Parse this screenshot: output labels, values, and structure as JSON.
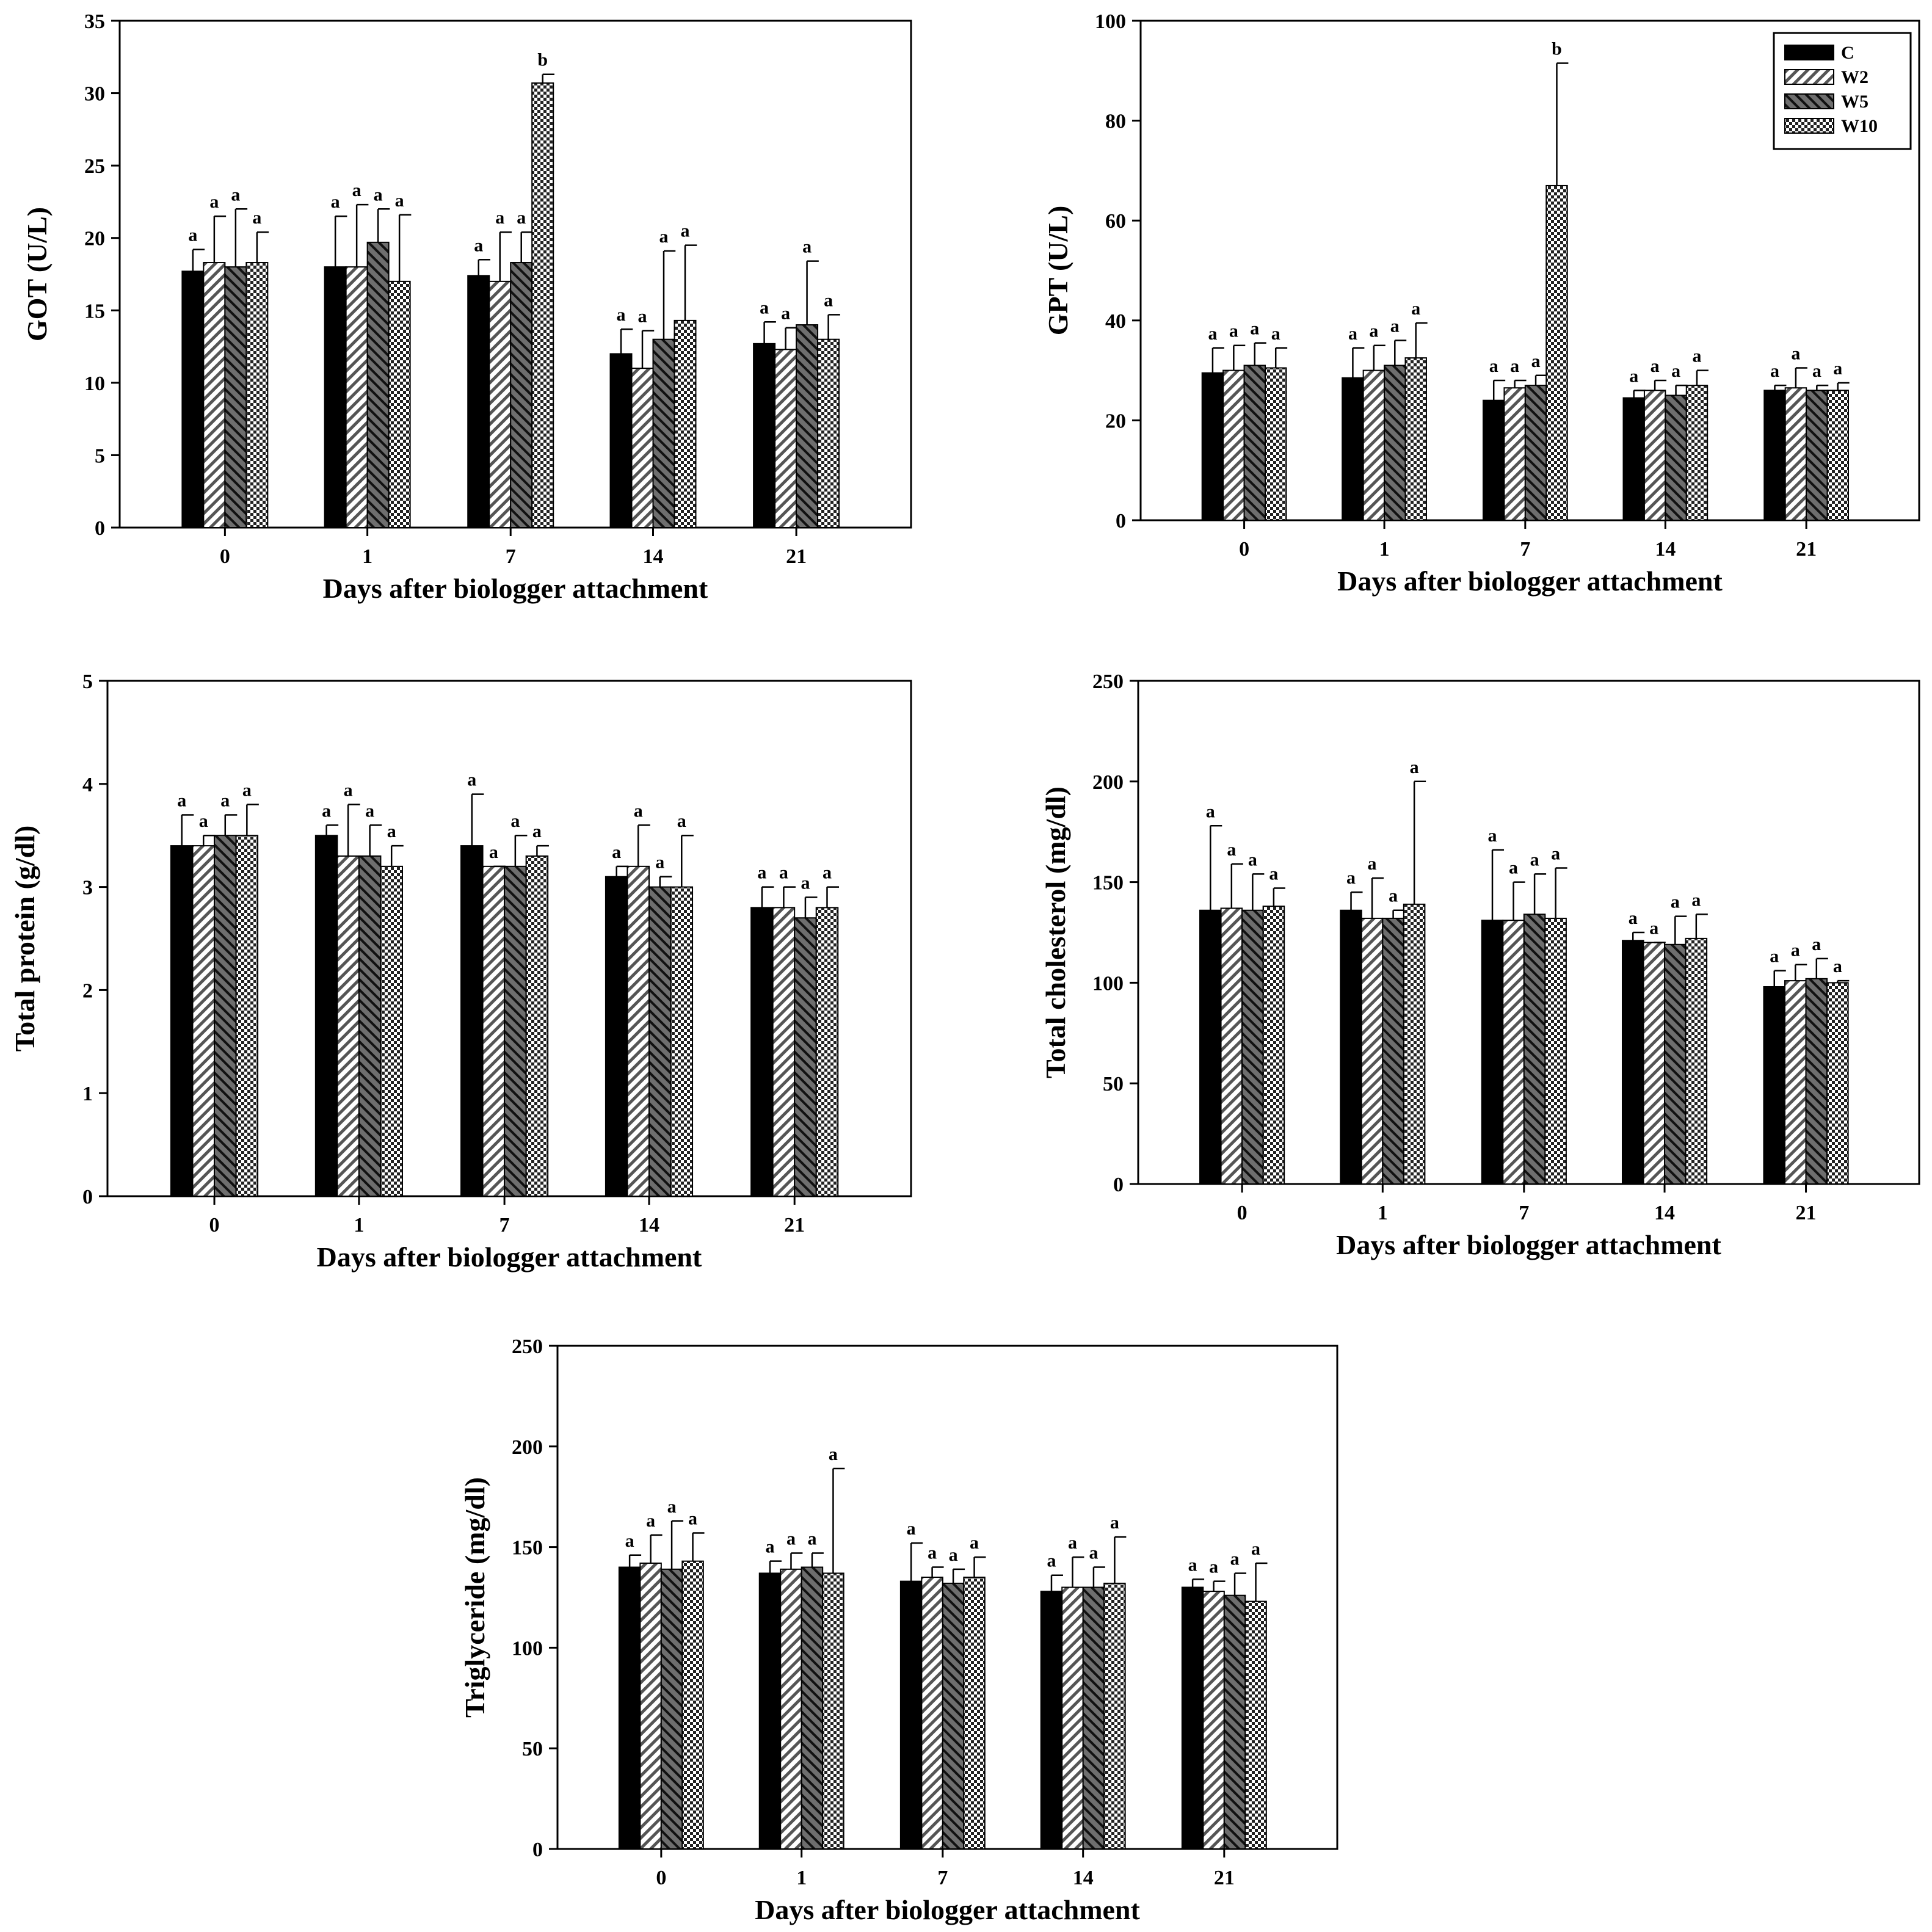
{
  "series_names": [
    "C",
    "W2",
    "W5",
    "W10"
  ],
  "categories": [
    "0",
    "1",
    "7",
    "14",
    "21"
  ],
  "chart_data": [
    {
      "type": "bar",
      "title": "",
      "xlabel": "Days after biologger attachment",
      "ylabel": "GOT (U/L)",
      "ylim": [
        0,
        35
      ],
      "yticks": [
        0,
        5,
        10,
        15,
        20,
        25,
        30,
        35
      ],
      "categories": [
        "0",
        "1",
        "7",
        "14",
        "21"
      ],
      "series": [
        {
          "name": "C",
          "values": [
            17.7,
            18.0,
            17.4,
            12.0,
            12.7
          ],
          "err_upper": [
            19.2,
            21.5,
            18.5,
            13.7,
            14.2
          ],
          "letters": [
            "a",
            "a",
            "a",
            "a",
            "a"
          ]
        },
        {
          "name": "W2",
          "values": [
            18.3,
            18.0,
            17.0,
            11.0,
            12.3
          ],
          "err_upper": [
            21.5,
            22.3,
            20.4,
            13.6,
            13.8
          ],
          "letters": [
            "a",
            "a",
            "a",
            "a",
            "a"
          ]
        },
        {
          "name": "W5",
          "values": [
            18.0,
            19.7,
            18.3,
            13.0,
            14.0
          ],
          "err_upper": [
            22.0,
            22.0,
            20.4,
            19.1,
            18.4
          ],
          "letters": [
            "a",
            "a",
            "a",
            "a",
            "a"
          ]
        },
        {
          "name": "W10",
          "values": [
            18.3,
            17.0,
            30.7,
            14.3,
            13.0
          ],
          "err_upper": [
            20.4,
            21.6,
            31.3,
            19.5,
            14.7
          ],
          "letters": [
            "a",
            "a",
            "b",
            "a",
            "a"
          ]
        }
      ],
      "legend": false
    },
    {
      "type": "bar",
      "title": "",
      "xlabel": "Days after biologger attachment",
      "ylabel": "GPT (U/L)",
      "ylim": [
        0,
        100
      ],
      "yticks": [
        0,
        20,
        40,
        60,
        80,
        100
      ],
      "categories": [
        "0",
        "1",
        "7",
        "14",
        "21"
      ],
      "series": [
        {
          "name": "C",
          "values": [
            29.5,
            28.5,
            24.0,
            24.5,
            26.0
          ],
          "err_upper": [
            34.5,
            34.5,
            28.0,
            26.0,
            27.0
          ],
          "letters": [
            "a",
            "a",
            "a",
            "a",
            "a"
          ]
        },
        {
          "name": "W2",
          "values": [
            30.0,
            30.0,
            26.5,
            26.0,
            26.5
          ],
          "err_upper": [
            35.0,
            35.0,
            28.0,
            28.0,
            30.5
          ],
          "letters": [
            "a",
            "a",
            "a",
            "a",
            "a"
          ]
        },
        {
          "name": "W5",
          "values": [
            31.0,
            31.0,
            27.0,
            25.0,
            26.0
          ],
          "err_upper": [
            35.5,
            36.0,
            29.0,
            27.0,
            27.0
          ],
          "letters": [
            "a",
            "a",
            "a",
            "a",
            "a"
          ]
        },
        {
          "name": "W10",
          "values": [
            30.5,
            32.5,
            67.0,
            27.0,
            26.0
          ],
          "err_upper": [
            34.5,
            39.5,
            91.5,
            30.0,
            27.5
          ],
          "letters": [
            "a",
            "a",
            "b",
            "a",
            "a"
          ]
        }
      ],
      "legend": true,
      "legend_position": "top-right"
    },
    {
      "type": "bar",
      "title": "",
      "xlabel": "Days after biologger attachment",
      "ylabel": "Total protein (g/dl)",
      "ylim": [
        0,
        5
      ],
      "yticks": [
        0,
        1,
        2,
        3,
        4,
        5
      ],
      "categories": [
        "0",
        "1",
        "7",
        "14",
        "21"
      ],
      "series": [
        {
          "name": "C",
          "values": [
            3.4,
            3.5,
            3.4,
            3.1,
            2.8
          ],
          "err_upper": [
            3.7,
            3.6,
            3.9,
            3.2,
            3.0
          ],
          "letters": [
            "a",
            "a",
            "a",
            "a",
            "a"
          ]
        },
        {
          "name": "W2",
          "values": [
            3.4,
            3.3,
            3.2,
            3.2,
            2.8
          ],
          "err_upper": [
            3.5,
            3.8,
            3.2,
            3.6,
            3.0
          ],
          "letters": [
            "a",
            "a",
            "a",
            "a",
            "a"
          ]
        },
        {
          "name": "W5",
          "values": [
            3.5,
            3.3,
            3.2,
            3.0,
            2.7
          ],
          "err_upper": [
            3.7,
            3.6,
            3.5,
            3.1,
            2.9
          ],
          "letters": [
            "a",
            "a",
            "a",
            "a",
            "a"
          ]
        },
        {
          "name": "W10",
          "values": [
            3.5,
            3.2,
            3.3,
            3.0,
            2.8
          ],
          "err_upper": [
            3.8,
            3.4,
            3.4,
            3.5,
            3.0
          ],
          "letters": [
            "a",
            "a",
            "a",
            "a",
            "a"
          ]
        }
      ],
      "legend": false
    },
    {
      "type": "bar",
      "title": "",
      "xlabel": "Days after biologger attachment",
      "ylabel": "Total cholesterol (mg/dl)",
      "ylim": [
        0,
        250
      ],
      "yticks": [
        0,
        50,
        100,
        150,
        200,
        250
      ],
      "categories": [
        "0",
        "1",
        "7",
        "14",
        "21"
      ],
      "series": [
        {
          "name": "C",
          "values": [
            136,
            136,
            131,
            121,
            98
          ],
          "err_upper": [
            178,
            145,
            166,
            125,
            106
          ],
          "letters": [
            "a",
            "a",
            "a",
            "a",
            "a"
          ]
        },
        {
          "name": "W2",
          "values": [
            137,
            132,
            131,
            120,
            101
          ],
          "err_upper": [
            159,
            152,
            150,
            120,
            109
          ],
          "letters": [
            "a",
            "a",
            "a",
            "a",
            "a"
          ]
        },
        {
          "name": "W5",
          "values": [
            136,
            132,
            134,
            119,
            102
          ],
          "err_upper": [
            154,
            136,
            154,
            133,
            112
          ],
          "letters": [
            "a",
            "a",
            "a",
            "a",
            "a"
          ]
        },
        {
          "name": "W10",
          "values": [
            138,
            139,
            132,
            122,
            100
          ],
          "err_upper": [
            147,
            200,
            157,
            134,
            101
          ],
          "letters": [
            "a",
            "a",
            "a",
            "a",
            "a"
          ]
        }
      ],
      "legend": false
    },
    {
      "type": "bar",
      "title": "",
      "xlabel": "Days after biologger attachment",
      "ylabel": "Triglyceride (mg/dl)",
      "ylim": [
        0,
        250
      ],
      "yticks": [
        0,
        50,
        100,
        150,
        200,
        250
      ],
      "categories": [
        "0",
        "1",
        "7",
        "14",
        "21"
      ],
      "series": [
        {
          "name": "C",
          "values": [
            140,
            137,
            133,
            128,
            130
          ],
          "err_upper": [
            146,
            143,
            152,
            136,
            134
          ],
          "letters": [
            "a",
            "a",
            "a",
            "a",
            "a"
          ]
        },
        {
          "name": "W2",
          "values": [
            142,
            139,
            135,
            130,
            128
          ],
          "err_upper": [
            156,
            147,
            140,
            145,
            133
          ],
          "letters": [
            "a",
            "a",
            "a",
            "a",
            "a"
          ]
        },
        {
          "name": "W5",
          "values": [
            139,
            140,
            132,
            130,
            126
          ],
          "err_upper": [
            163,
            147,
            139,
            140,
            137
          ],
          "letters": [
            "a",
            "a",
            "a",
            "a",
            "a"
          ]
        },
        {
          "name": "W10",
          "values": [
            143,
            137,
            135,
            132,
            123
          ],
          "err_upper": [
            157,
            189,
            145,
            155,
            142
          ],
          "letters": [
            "a",
            "a",
            "a",
            "a",
            "a"
          ]
        }
      ],
      "legend": false
    }
  ]
}
